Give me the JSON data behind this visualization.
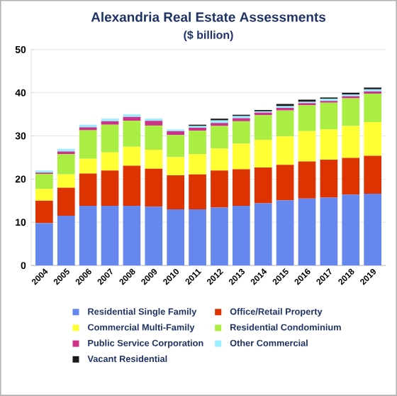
{
  "chart_data": {
    "type": "bar",
    "stacked": true,
    "title": "Alexandria Real Estate Assessments",
    "subtitle": "($ billion)",
    "categories": [
      "2004",
      "2005",
      "2006",
      "2007",
      "2008",
      "2009",
      "2010",
      "2011",
      "2012",
      "2013",
      "2014",
      "2015",
      "2016",
      "2017",
      "2018",
      "2019"
    ],
    "series": [
      {
        "name": "Residential Single Family",
        "color": "#6688ee",
        "values": [
          9.8,
          11.5,
          13.8,
          13.8,
          13.8,
          13.6,
          13.0,
          13.0,
          13.4,
          13.8,
          14.4,
          15.1,
          15.5,
          15.7,
          16.4,
          16.6
        ]
      },
      {
        "name": "Office/Retail Property",
        "color": "#dd3300",
        "values": [
          5.2,
          6.5,
          7.5,
          8.2,
          9.3,
          8.8,
          7.9,
          8.1,
          8.6,
          8.5,
          8.3,
          8.2,
          8.6,
          8.8,
          8.5,
          8.8
        ]
      },
      {
        "name": "Commercial Multi-Family",
        "color": "#ffff33",
        "values": [
          2.7,
          3.1,
          3.4,
          4.2,
          4.4,
          4.4,
          4.2,
          4.7,
          5.1,
          5.9,
          6.4,
          6.6,
          7.0,
          7.0,
          7.4,
          7.8
        ]
      },
      {
        "name": "Residential Condominium",
        "color": "#aaee44",
        "values": [
          3.5,
          4.7,
          6.6,
          6.4,
          6.0,
          5.6,
          5.1,
          5.4,
          5.2,
          5.2,
          5.7,
          6.0,
          6.0,
          6.2,
          6.4,
          6.6
        ]
      },
      {
        "name": "Public Service Corporation",
        "color": "#cc3388",
        "values": [
          0.3,
          0.6,
          0.7,
          0.8,
          0.9,
          1.1,
          0.9,
          0.7,
          0.7,
          0.7,
          0.6,
          0.6,
          0.5,
          0.4,
          0.5,
          0.5
        ]
      },
      {
        "name": "Other Commercial",
        "color": "#99eeff",
        "values": [
          0.5,
          0.6,
          0.6,
          0.6,
          0.6,
          0.5,
          0.4,
          0.4,
          0.6,
          0.5,
          0.3,
          0.4,
          0.3,
          0.5,
          0.4,
          0.5
        ]
      },
      {
        "name": "Vacant Residential",
        "color": "#1a1a1a",
        "values": [
          0,
          0,
          0,
          0,
          0,
          0,
          0,
          0.3,
          0.4,
          0.3,
          0.3,
          0.5,
          0.5,
          0.3,
          0.4,
          0.4
        ]
      }
    ],
    "ylim": [
      0,
      50
    ],
    "yticks": [
      0,
      10,
      20,
      30,
      40,
      50
    ],
    "grid": "y",
    "legend": "bottom"
  }
}
